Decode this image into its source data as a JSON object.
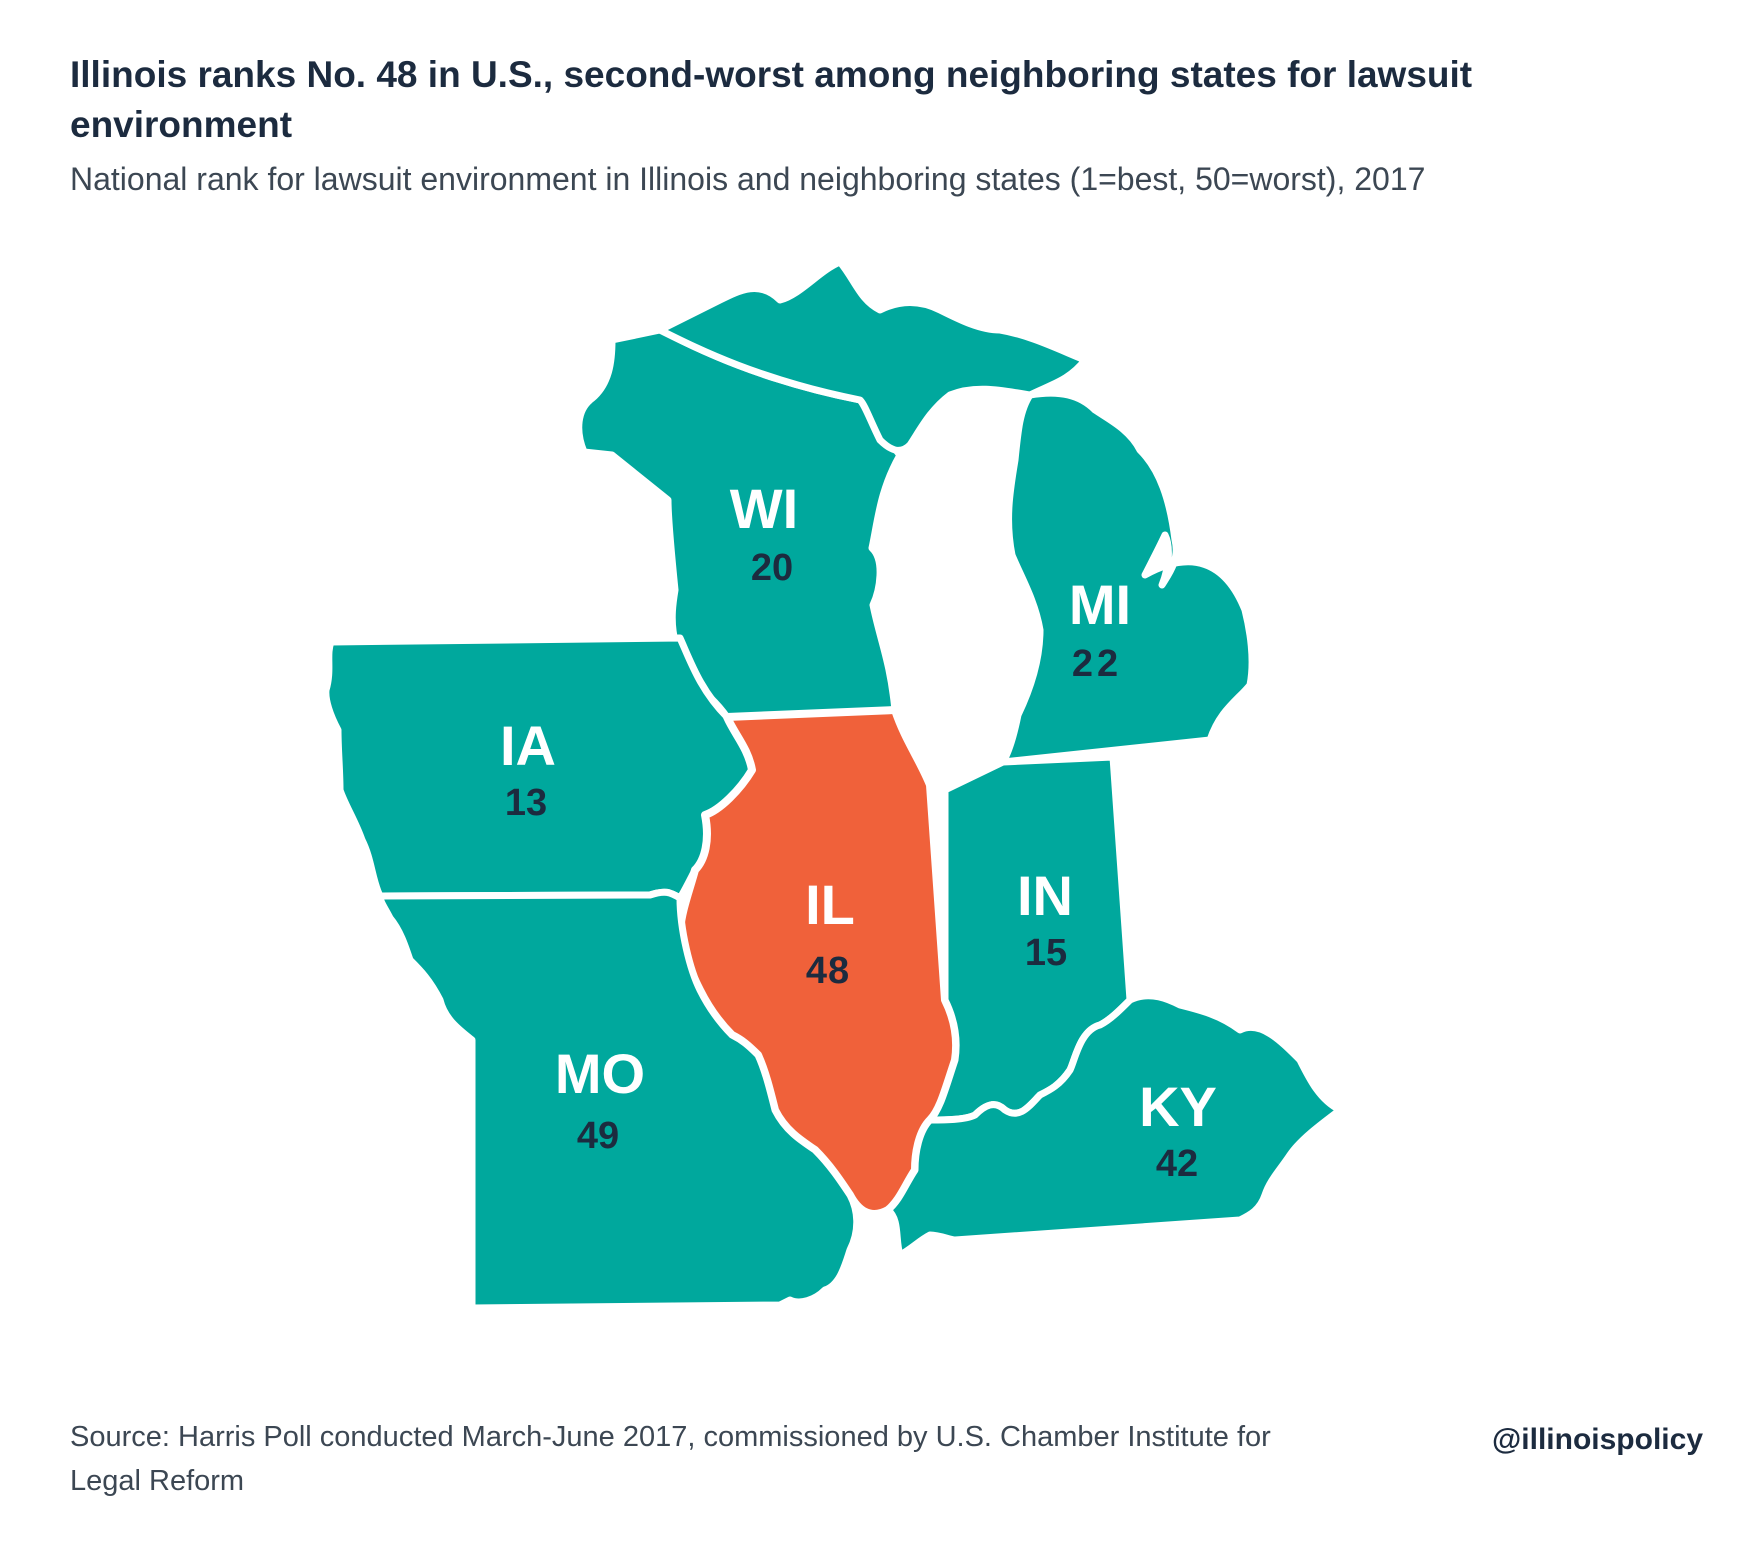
{
  "title": "Illinois ranks No. 48 in U.S., second-worst among neighboring states for lawsuit environment",
  "subtitle": "National rank for lawsuit environment in Illinois and neighboring states (1=best, 50=worst), 2017",
  "colors": {
    "neighbor": "#00a89d",
    "illinois": "#f0613a",
    "border": "#ffffff",
    "text_dark": "#1c2b3f"
  },
  "states": [
    {
      "abbr": "WI",
      "rank": "20"
    },
    {
      "abbr": "MI",
      "rank": "22"
    },
    {
      "abbr": "IA",
      "rank": "13"
    },
    {
      "abbr": "IL",
      "rank": "48"
    },
    {
      "abbr": "IN",
      "rank": "15"
    },
    {
      "abbr": "MO",
      "rank": "49"
    },
    {
      "abbr": "KY",
      "rank": "42"
    }
  ],
  "source": "Source: Harris Poll conducted March-June 2017, commissioned by U.S. Chamber Institute for Legal Reform",
  "handle": "@illinoispolicy"
}
